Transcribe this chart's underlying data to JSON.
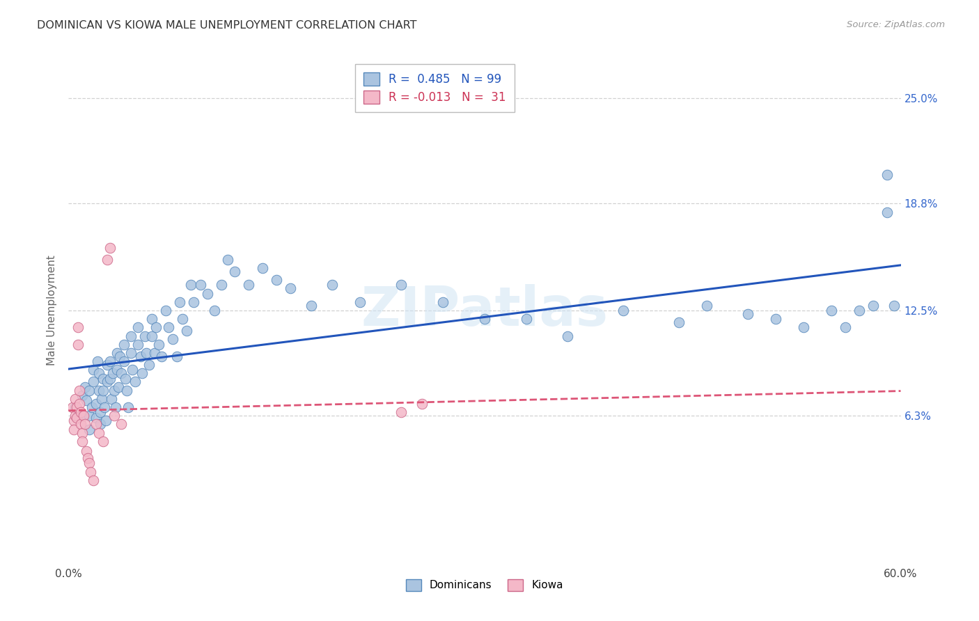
{
  "title": "DOMINICAN VS KIOWA MALE UNEMPLOYMENT CORRELATION CHART",
  "source": "Source: ZipAtlas.com",
  "ylabel": "Male Unemployment",
  "xlim": [
    0.0,
    0.6
  ],
  "ylim": [
    -0.025,
    0.275
  ],
  "yticks": [
    0.063,
    0.125,
    0.188,
    0.25
  ],
  "ytick_labels": [
    "6.3%",
    "12.5%",
    "18.8%",
    "25.0%"
  ],
  "xticks": [
    0.0,
    0.1,
    0.2,
    0.3,
    0.4,
    0.5,
    0.6
  ],
  "xtick_labels": [
    "0.0%",
    "",
    "",
    "",
    "",
    "",
    "60.0%"
  ],
  "grid_color": "#cccccc",
  "background_color": "#ffffff",
  "watermark": "ZIPatlas",
  "dominicans_color": "#aac4e0",
  "dominicans_edge": "#5588bb",
  "kiowa_color": "#f4b8c8",
  "kiowa_edge": "#cc6688",
  "blue_line_color": "#2255bb",
  "pink_line_color": "#dd5577",
  "legend_title_blue": "R =  0.485   N = 99",
  "legend_title_pink": "R = -0.013   N =  31",
  "dominicans_x": [
    0.005,
    0.007,
    0.01,
    0.01,
    0.012,
    0.013,
    0.015,
    0.015,
    0.015,
    0.017,
    0.018,
    0.018,
    0.02,
    0.02,
    0.021,
    0.022,
    0.022,
    0.023,
    0.023,
    0.024,
    0.025,
    0.025,
    0.026,
    0.027,
    0.028,
    0.028,
    0.03,
    0.03,
    0.031,
    0.032,
    0.033,
    0.034,
    0.035,
    0.035,
    0.036,
    0.037,
    0.038,
    0.04,
    0.04,
    0.041,
    0.042,
    0.043,
    0.045,
    0.045,
    0.046,
    0.048,
    0.05,
    0.05,
    0.052,
    0.053,
    0.055,
    0.056,
    0.058,
    0.06,
    0.06,
    0.062,
    0.063,
    0.065,
    0.067,
    0.07,
    0.072,
    0.075,
    0.078,
    0.08,
    0.082,
    0.085,
    0.088,
    0.09,
    0.095,
    0.1,
    0.105,
    0.11,
    0.115,
    0.12,
    0.13,
    0.14,
    0.15,
    0.16,
    0.175,
    0.19,
    0.21,
    0.24,
    0.27,
    0.3,
    0.33,
    0.36,
    0.4,
    0.44,
    0.46,
    0.49,
    0.51,
    0.53,
    0.55,
    0.56,
    0.57,
    0.58,
    0.59,
    0.59,
    0.595
  ],
  "dominicans_y": [
    0.068,
    0.063,
    0.075,
    0.063,
    0.08,
    0.072,
    0.078,
    0.063,
    0.055,
    0.068,
    0.09,
    0.083,
    0.07,
    0.062,
    0.095,
    0.088,
    0.078,
    0.065,
    0.058,
    0.073,
    0.085,
    0.078,
    0.068,
    0.06,
    0.093,
    0.083,
    0.095,
    0.085,
    0.073,
    0.088,
    0.078,
    0.068,
    0.1,
    0.09,
    0.08,
    0.098,
    0.088,
    0.105,
    0.095,
    0.085,
    0.078,
    0.068,
    0.11,
    0.1,
    0.09,
    0.083,
    0.115,
    0.105,
    0.098,
    0.088,
    0.11,
    0.1,
    0.093,
    0.12,
    0.11,
    0.1,
    0.115,
    0.105,
    0.098,
    0.125,
    0.115,
    0.108,
    0.098,
    0.13,
    0.12,
    0.113,
    0.14,
    0.13,
    0.14,
    0.135,
    0.125,
    0.14,
    0.155,
    0.148,
    0.14,
    0.15,
    0.143,
    0.138,
    0.128,
    0.14,
    0.13,
    0.14,
    0.13,
    0.12,
    0.12,
    0.11,
    0.125,
    0.118,
    0.128,
    0.123,
    0.12,
    0.115,
    0.125,
    0.115,
    0.125,
    0.128,
    0.205,
    0.183,
    0.128
  ],
  "kiowa_x": [
    0.003,
    0.004,
    0.004,
    0.005,
    0.005,
    0.006,
    0.006,
    0.007,
    0.007,
    0.008,
    0.008,
    0.009,
    0.009,
    0.01,
    0.01,
    0.011,
    0.012,
    0.013,
    0.014,
    0.015,
    0.016,
    0.018,
    0.02,
    0.022,
    0.025,
    0.028,
    0.03,
    0.033,
    0.038,
    0.24,
    0.255
  ],
  "kiowa_y": [
    0.068,
    0.06,
    0.055,
    0.073,
    0.063,
    0.068,
    0.062,
    0.115,
    0.105,
    0.078,
    0.07,
    0.065,
    0.058,
    0.053,
    0.048,
    0.063,
    0.058,
    0.042,
    0.038,
    0.035,
    0.03,
    0.025,
    0.058,
    0.053,
    0.048,
    0.155,
    0.162,
    0.063,
    0.058,
    0.065,
    0.07
  ]
}
